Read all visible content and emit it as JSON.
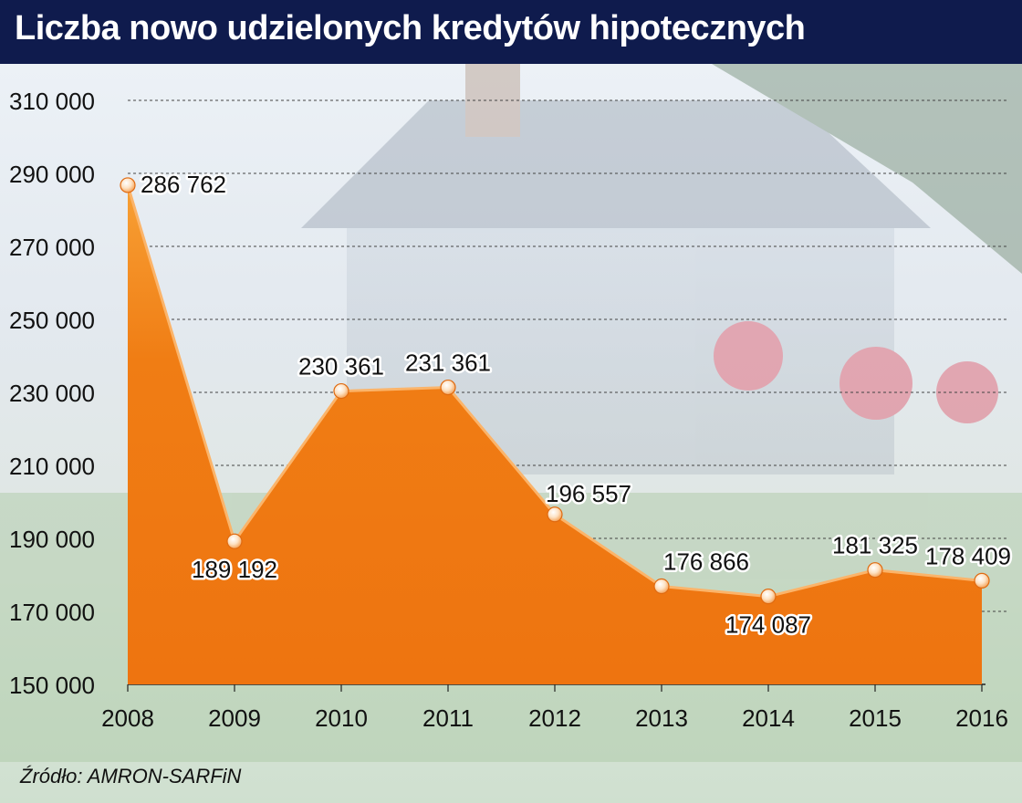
{
  "title": "Liczba nowo udzielonych kredytów hipotecznych",
  "source": "Źródło: AMRON-SARFiN",
  "chart_data": {
    "type": "area",
    "title": "Liczba nowo udzielonych kredytów hipotecznych",
    "x": [
      "2008",
      "2009",
      "2010",
      "2011",
      "2012",
      "2013",
      "2014",
      "2015",
      "2016"
    ],
    "values": [
      286762,
      189192,
      230361,
      231361,
      196557,
      176866,
      174087,
      181325,
      178409
    ],
    "data_labels": [
      "286 762",
      "189 192",
      "230 361",
      "231 361",
      "196 557",
      "176 866",
      "174 087",
      "181 325",
      "178 409"
    ],
    "yticks": [
      150000,
      170000,
      190000,
      210000,
      230000,
      250000,
      270000,
      290000,
      310000
    ],
    "ytick_labels": [
      "150 000",
      "170 000",
      "190 000",
      "210 000",
      "230 000",
      "250 000",
      "270 000",
      "290 000",
      "310 000"
    ],
    "ylim": [
      150000,
      310000
    ],
    "grid": true,
    "color": "#f07d14"
  }
}
